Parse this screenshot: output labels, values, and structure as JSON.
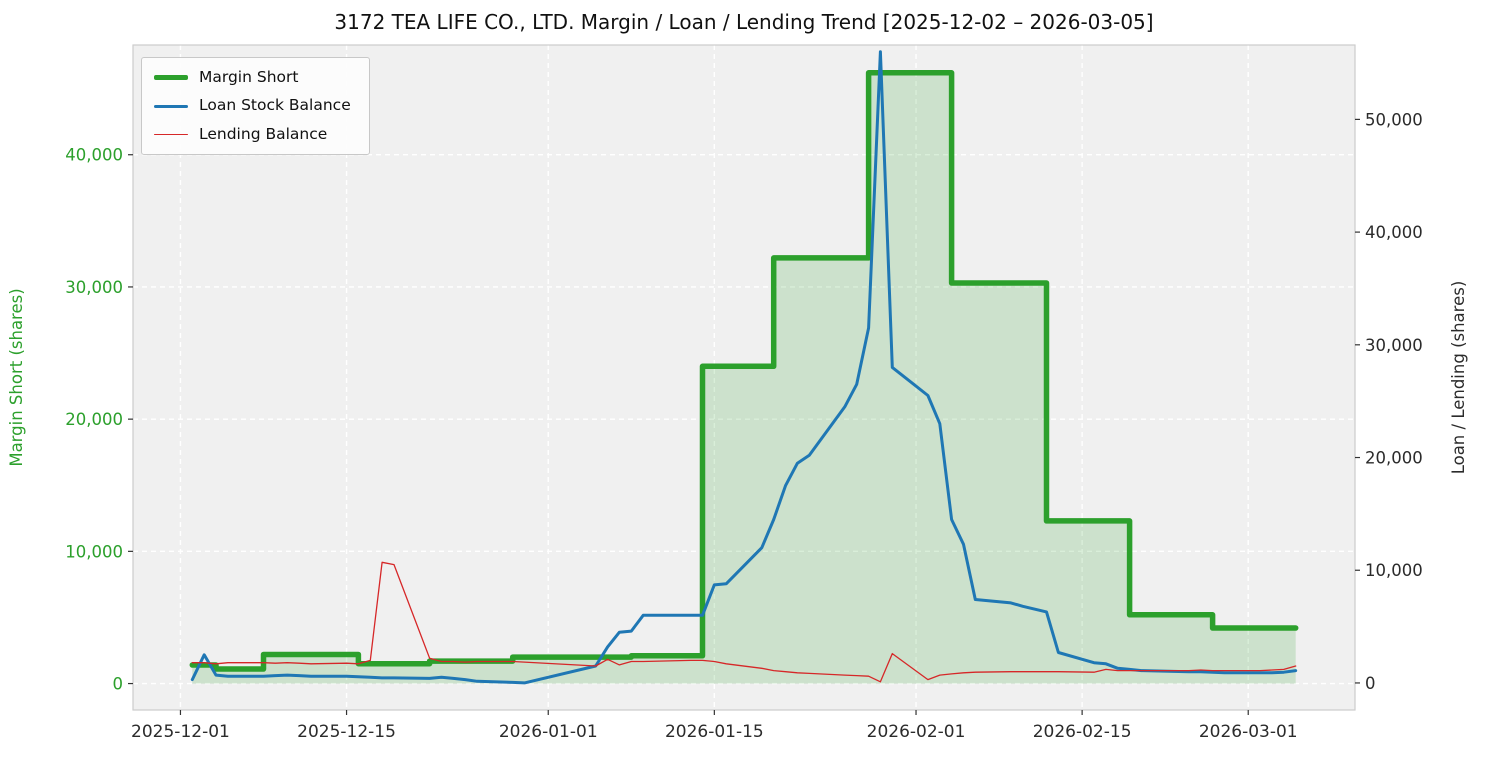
{
  "chart_data": {
    "type": "line",
    "title": "3172 TEA LIFE CO., LTD. Margin / Loan / Lending Trend [2025-12-02 – 2026-03-05]",
    "plot_bg": "#f0f0f0",
    "grid": "white-dashed",
    "legend_position": "upper-left",
    "left_axis": {
      "label": "Margin Short (shares)",
      "color": "#2ca02c",
      "ticks": [
        0,
        10000,
        20000,
        30000,
        40000
      ],
      "lim": [
        -2000,
        48300
      ]
    },
    "right_axis": {
      "label": "Loan / Lending (shares)",
      "color": "#2b2b2b",
      "ticks": [
        0,
        10000,
        20000,
        30000,
        40000,
        50000
      ],
      "lim": [
        -2400,
        56600
      ]
    },
    "x_axis": {
      "ticks": [
        "2025-12-01",
        "2025-12-15",
        "2026-01-01",
        "2026-01-15",
        "2026-02-01",
        "2026-02-15",
        "2026-03-01"
      ],
      "domain": [
        "2025-11-27",
        "2026-03-10"
      ]
    },
    "series": [
      {
        "id": "margin-short",
        "name": "Margin Short",
        "axis": "left",
        "color": "#2ca02c",
        "width": 5.5,
        "step": true,
        "fill": true,
        "fill_opacity": 0.18,
        "points": [
          [
            "2025-12-02",
            1400
          ],
          [
            "2025-12-03",
            1400
          ],
          [
            "2025-12-04",
            1100
          ],
          [
            "2025-12-05",
            1100
          ],
          [
            "2025-12-08",
            2200
          ],
          [
            "2025-12-09",
            2200
          ],
          [
            "2025-12-10",
            2200
          ],
          [
            "2025-12-11",
            2200
          ],
          [
            "2025-12-12",
            2200
          ],
          [
            "2025-12-15",
            2200
          ],
          [
            "2025-12-16",
            1500
          ],
          [
            "2025-12-17",
            1500
          ],
          [
            "2025-12-18",
            1500
          ],
          [
            "2025-12-19",
            1500
          ],
          [
            "2025-12-22",
            1700
          ],
          [
            "2025-12-23",
            1700
          ],
          [
            "2025-12-24",
            1700
          ],
          [
            "2025-12-25",
            1700
          ],
          [
            "2025-12-26",
            1700
          ],
          [
            "2025-12-29",
            2000
          ],
          [
            "2025-12-30",
            2000
          ],
          [
            "2026-01-05",
            2000
          ],
          [
            "2026-01-06",
            2000
          ],
          [
            "2026-01-07",
            2000
          ],
          [
            "2026-01-08",
            2100
          ],
          [
            "2026-01-09",
            2100
          ],
          [
            "2026-01-13",
            2100
          ],
          [
            "2026-01-14",
            24000
          ],
          [
            "2026-01-15",
            24000
          ],
          [
            "2026-01-16",
            24000
          ],
          [
            "2026-01-19",
            24000
          ],
          [
            "2026-01-20",
            32200
          ],
          [
            "2026-01-21",
            32200
          ],
          [
            "2026-01-22",
            32200
          ],
          [
            "2026-01-23",
            32200
          ],
          [
            "2026-01-26",
            32200
          ],
          [
            "2026-01-27",
            32200
          ],
          [
            "2026-01-28",
            46200
          ],
          [
            "2026-01-29",
            46200
          ],
          [
            "2026-01-30",
            46200
          ],
          [
            "2026-02-02",
            46200
          ],
          [
            "2026-02-03",
            46200
          ],
          [
            "2026-02-04",
            30300
          ],
          [
            "2026-02-05",
            30300
          ],
          [
            "2026-02-06",
            30300
          ],
          [
            "2026-02-09",
            30300
          ],
          [
            "2026-02-10",
            30300
          ],
          [
            "2026-02-12",
            12300
          ],
          [
            "2026-02-13",
            12300
          ],
          [
            "2026-02-16",
            12300
          ],
          [
            "2026-02-17",
            12300
          ],
          [
            "2026-02-18",
            12300
          ],
          [
            "2026-02-19",
            5200
          ],
          [
            "2026-02-20",
            5200
          ],
          [
            "2026-02-24",
            5200
          ],
          [
            "2026-02-25",
            5200
          ],
          [
            "2026-02-26",
            4200
          ],
          [
            "2026-02-27",
            4200
          ],
          [
            "2026-03-02",
            4200
          ],
          [
            "2026-03-03",
            4200
          ],
          [
            "2026-03-04",
            4200
          ],
          [
            "2026-03-05",
            4200
          ]
        ]
      },
      {
        "id": "loan-stock-balance",
        "name": "Loan Stock Balance",
        "axis": "right",
        "color": "#1f77b4",
        "width": 3,
        "step": false,
        "fill": false,
        "points": [
          [
            "2025-12-02",
            300
          ],
          [
            "2025-12-03",
            2500
          ],
          [
            "2025-12-04",
            700
          ],
          [
            "2025-12-05",
            600
          ],
          [
            "2025-12-08",
            600
          ],
          [
            "2025-12-09",
            650
          ],
          [
            "2025-12-10",
            700
          ],
          [
            "2025-12-11",
            650
          ],
          [
            "2025-12-12",
            600
          ],
          [
            "2025-12-15",
            600
          ],
          [
            "2025-12-16",
            550
          ],
          [
            "2025-12-17",
            500
          ],
          [
            "2025-12-18",
            450
          ],
          [
            "2025-12-19",
            450
          ],
          [
            "2025-12-22",
            400
          ],
          [
            "2025-12-23",
            500
          ],
          [
            "2025-12-24",
            400
          ],
          [
            "2025-12-25",
            300
          ],
          [
            "2025-12-26",
            150
          ],
          [
            "2025-12-29",
            50
          ],
          [
            "2025-12-30",
            0
          ],
          [
            "2026-01-05",
            1500
          ],
          [
            "2026-01-06",
            3200
          ],
          [
            "2026-01-07",
            4500
          ],
          [
            "2026-01-08",
            4600
          ],
          [
            "2026-01-09",
            6000
          ],
          [
            "2026-01-13",
            6000
          ],
          [
            "2026-01-14",
            6000
          ],
          [
            "2026-01-15",
            8700
          ],
          [
            "2026-01-16",
            8800
          ],
          [
            "2026-01-19",
            12000
          ],
          [
            "2026-01-20",
            14500
          ],
          [
            "2026-01-21",
            17500
          ],
          [
            "2026-01-22",
            19500
          ],
          [
            "2026-01-23",
            20200
          ],
          [
            "2026-01-26",
            24500
          ],
          [
            "2026-01-27",
            26500
          ],
          [
            "2026-01-28",
            31500
          ],
          [
            "2026-01-29",
            56000
          ],
          [
            "2026-01-30",
            28000
          ],
          [
            "2026-02-02",
            25500
          ],
          [
            "2026-02-03",
            23000
          ],
          [
            "2026-02-04",
            14500
          ],
          [
            "2026-02-05",
            12300
          ],
          [
            "2026-02-06",
            7400
          ],
          [
            "2026-02-09",
            7100
          ],
          [
            "2026-02-10",
            6800
          ],
          [
            "2026-02-12",
            6300
          ],
          [
            "2026-02-13",
            2700
          ],
          [
            "2026-02-16",
            1800
          ],
          [
            "2026-02-17",
            1700
          ],
          [
            "2026-02-18",
            1300
          ],
          [
            "2026-02-19",
            1200
          ],
          [
            "2026-02-20",
            1100
          ],
          [
            "2026-02-24",
            1000
          ],
          [
            "2026-02-25",
            1000
          ],
          [
            "2026-02-26",
            950
          ],
          [
            "2026-02-27",
            900
          ],
          [
            "2026-03-02",
            900
          ],
          [
            "2026-03-03",
            900
          ],
          [
            "2026-03-04",
            950
          ],
          [
            "2026-03-05",
            1100
          ]
        ]
      },
      {
        "id": "lending-balance",
        "name": "Lending Balance",
        "axis": "right",
        "color": "#d62728",
        "width": 1.3,
        "step": false,
        "fill": false,
        "points": [
          [
            "2025-12-02",
            1800
          ],
          [
            "2025-12-03",
            1800
          ],
          [
            "2025-12-04",
            1700
          ],
          [
            "2025-12-05",
            1800
          ],
          [
            "2025-12-08",
            1800
          ],
          [
            "2025-12-09",
            1750
          ],
          [
            "2025-12-10",
            1800
          ],
          [
            "2025-12-11",
            1750
          ],
          [
            "2025-12-12",
            1700
          ],
          [
            "2025-12-15",
            1750
          ],
          [
            "2025-12-16",
            1700
          ],
          [
            "2025-12-17",
            2000
          ],
          [
            "2025-12-18",
            10700
          ],
          [
            "2025-12-19",
            10500
          ],
          [
            "2025-12-22",
            2200
          ],
          [
            "2025-12-23",
            1900
          ],
          [
            "2025-12-24",
            1900
          ],
          [
            "2025-12-25",
            1850
          ],
          [
            "2025-12-26",
            1900
          ],
          [
            "2025-12-29",
            1900
          ],
          [
            "2025-12-30",
            1850
          ],
          [
            "2026-01-05",
            1500
          ],
          [
            "2026-01-06",
            2100
          ],
          [
            "2026-01-07",
            1600
          ],
          [
            "2026-01-08",
            1900
          ],
          [
            "2026-01-09",
            1900
          ],
          [
            "2026-01-13",
            2000
          ],
          [
            "2026-01-14",
            2000
          ],
          [
            "2026-01-15",
            1900
          ],
          [
            "2026-01-16",
            1700
          ],
          [
            "2026-01-19",
            1300
          ],
          [
            "2026-01-20",
            1100
          ],
          [
            "2026-01-21",
            1000
          ],
          [
            "2026-01-22",
            900
          ],
          [
            "2026-01-23",
            850
          ],
          [
            "2026-01-26",
            700
          ],
          [
            "2026-01-27",
            650
          ],
          [
            "2026-01-28",
            600
          ],
          [
            "2026-01-29",
            100
          ],
          [
            "2026-01-30",
            2600
          ],
          [
            "2026-02-02",
            300
          ],
          [
            "2026-02-03",
            700
          ],
          [
            "2026-02-04",
            800
          ],
          [
            "2026-02-05",
            900
          ],
          [
            "2026-02-06",
            950
          ],
          [
            "2026-02-09",
            1000
          ],
          [
            "2026-02-10",
            1000
          ],
          [
            "2026-02-12",
            1000
          ],
          [
            "2026-02-13",
            1000
          ],
          [
            "2026-02-16",
            950
          ],
          [
            "2026-02-17",
            1200
          ],
          [
            "2026-02-18",
            1100
          ],
          [
            "2026-02-19",
            1100
          ],
          [
            "2026-02-20",
            1100
          ],
          [
            "2026-02-24",
            1100
          ],
          [
            "2026-02-25",
            1150
          ],
          [
            "2026-02-26",
            1100
          ],
          [
            "2026-02-27",
            1100
          ],
          [
            "2026-03-02",
            1100
          ],
          [
            "2026-03-03",
            1150
          ],
          [
            "2026-03-04",
            1200
          ],
          [
            "2026-03-05",
            1500
          ]
        ]
      }
    ]
  }
}
